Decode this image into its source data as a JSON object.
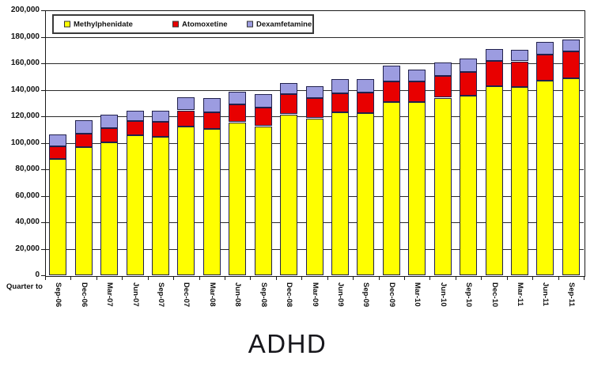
{
  "chart_data": {
    "type": "bar",
    "stacked": true,
    "title": "ADHD",
    "x_axis_note": "Quarter to",
    "categories": [
      "Sep-06",
      "Dec-06",
      "Mar-07",
      "Jun-07",
      "Sep-07",
      "Dec-07",
      "Mar-08",
      "Jun-08",
      "Sep-08",
      "Dec-08",
      "Mar-09",
      "Jun-09",
      "Sep-09",
      "Dec-09",
      "Mar-10",
      "Jun-10",
      "Sep-10",
      "Dec-10",
      "Mar-11",
      "Jun-11",
      "Sep-11"
    ],
    "series": [
      {
        "name": "Methylphenidate",
        "color": "#FFFF00",
        "values": [
          88000,
          97000,
          100500,
          105500,
          104500,
          112500,
          110500,
          115500,
          112500,
          121500,
          118500,
          123000,
          122500,
          130500,
          131000,
          134000,
          135500,
          142500,
          142000,
          147000,
          148500
        ]
      },
      {
        "name": "Atomoxetine",
        "color": "#E80000",
        "values": [
          9500,
          10000,
          10500,
          11000,
          11500,
          12000,
          12500,
          13500,
          14000,
          15000,
          15000,
          14500,
          15500,
          16000,
          15500,
          16500,
          18000,
          19500,
          19500,
          19500,
          20500
        ]
      },
      {
        "name": "Dexamfetamine",
        "color": "#9C9CE0",
        "values": [
          9000,
          10000,
          10500,
          8000,
          8000,
          10000,
          10500,
          9500,
          10500,
          8500,
          9000,
          10500,
          10000,
          11500,
          8500,
          10000,
          10000,
          9000,
          8500,
          9500,
          9000
        ]
      }
    ],
    "ylim": [
      0,
      200000
    ],
    "y_tick_step": 20000,
    "y_tick_labels": [
      "0",
      "20,000",
      "40,000",
      "60,000",
      "80,000",
      "100,000",
      "120,000",
      "140,000",
      "160,000",
      "180,000",
      "200,000"
    ],
    "grid": "horizontal",
    "legend_position": "top-left",
    "bar_border_color": "#21214d"
  }
}
